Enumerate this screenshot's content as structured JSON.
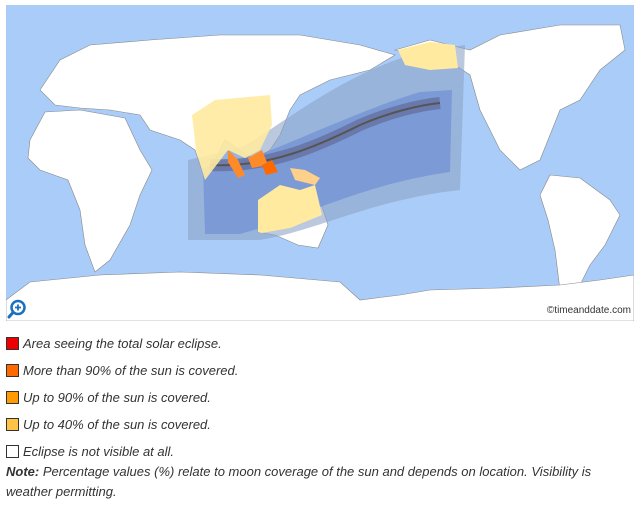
{
  "map": {
    "copyright": "©timeanddate.com",
    "ocean_color": "#aaccf8",
    "land_color": "#ffffff",
    "zoom_icon": "zoom-in-icon"
  },
  "legend": [
    {
      "label": "Area seeing the total solar eclipse.",
      "color": "#ee0000"
    },
    {
      "label": "More than 90% of the sun is covered.",
      "color": "#ff6a00"
    },
    {
      "label": "Up to 90% of the sun is covered.",
      "color": "#ff9a00"
    },
    {
      "label": "Up to 40% of the sun is covered.",
      "color": "#ffc445"
    },
    {
      "label": "Eclipse is not visible at all.",
      "color": "#ffffff"
    }
  ],
  "note": {
    "prefix": "Note:",
    "text": " Percentage values (%) relate to moon coverage of the sun and depends on location. Visibility is weather permitting."
  }
}
